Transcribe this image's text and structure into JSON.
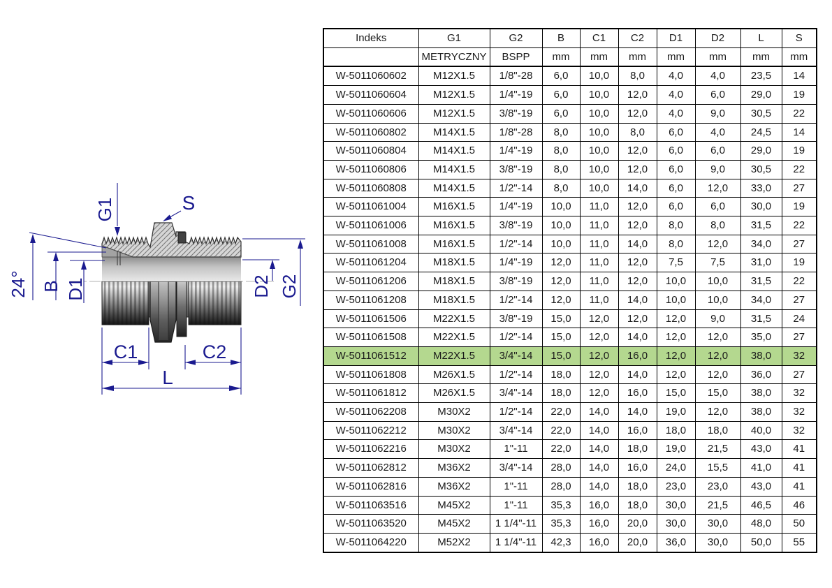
{
  "page": {
    "background": "#ffffff"
  },
  "drawing": {
    "label_color": "#1a1a8f",
    "labels": {
      "g1": "G1",
      "s": "S",
      "angle": "24°",
      "b": "B",
      "d1": "D1",
      "d2": "D2",
      "g2": "G2",
      "c1": "C1",
      "c2": "C2",
      "l": "L"
    }
  },
  "table": {
    "highlight_color": "#b4d88f",
    "highlight_row": 15,
    "columns": [
      "Indeks",
      "G1",
      "G2",
      "B",
      "C1",
      "C2",
      "D1",
      "D2",
      "L",
      "S"
    ],
    "units": [
      "",
      "METRYCZNY",
      "BSPP",
      "mm",
      "mm",
      "mm",
      "mm",
      "mm",
      "mm",
      "mm"
    ],
    "rows": [
      [
        "W-5011060602",
        "M12X1.5",
        "1/8\"-28",
        "6,0",
        "10,0",
        "8,0",
        "4,0",
        "4,0",
        "23,5",
        "14"
      ],
      [
        "W-5011060604",
        "M12X1.5",
        "1/4\"-19",
        "6,0",
        "10,0",
        "12,0",
        "4,0",
        "6,0",
        "29,0",
        "19"
      ],
      [
        "W-5011060606",
        "M12X1.5",
        "3/8\"-19",
        "6,0",
        "10,0",
        "12,0",
        "4,0",
        "9,0",
        "30,5",
        "22"
      ],
      [
        "W-5011060802",
        "M14X1.5",
        "1/8\"-28",
        "8,0",
        "10,0",
        "8,0",
        "6,0",
        "4,0",
        "24,5",
        "14"
      ],
      [
        "W-5011060804",
        "M14X1.5",
        "1/4\"-19",
        "8,0",
        "10,0",
        "12,0",
        "6,0",
        "6,0",
        "29,0",
        "19"
      ],
      [
        "W-5011060806",
        "M14X1.5",
        "3/8\"-19",
        "8,0",
        "10,0",
        "12,0",
        "6,0",
        "9,0",
        "30,5",
        "22"
      ],
      [
        "W-5011060808",
        "M14X1.5",
        "1/2\"-14",
        "8,0",
        "10,0",
        "14,0",
        "6,0",
        "12,0",
        "33,0",
        "27"
      ],
      [
        "W-5011061004",
        "M16X1.5",
        "1/4\"-19",
        "10,0",
        "11,0",
        "12,0",
        "6,0",
        "6,0",
        "30,0",
        "19"
      ],
      [
        "W-5011061006",
        "M16X1.5",
        "3/8\"-19",
        "10,0",
        "11,0",
        "12,0",
        "8,0",
        "8,0",
        "31,5",
        "22"
      ],
      [
        "W-5011061008",
        "M16X1.5",
        "1/2\"-14",
        "10,0",
        "11,0",
        "14,0",
        "8,0",
        "12,0",
        "34,0",
        "27"
      ],
      [
        "W-5011061204",
        "M18X1.5",
        "1/4\"-19",
        "12,0",
        "11,0",
        "12,0",
        "7,5",
        "7,5",
        "31,0",
        "19"
      ],
      [
        "W-5011061206",
        "M18X1.5",
        "3/8\"-19",
        "12,0",
        "11,0",
        "12,0",
        "10,0",
        "10,0",
        "31,5",
        "22"
      ],
      [
        "W-5011061208",
        "M18X1.5",
        "1/2\"-14",
        "12,0",
        "11,0",
        "14,0",
        "10,0",
        "10,0",
        "34,0",
        "27"
      ],
      [
        "W-5011061506",
        "M22X1.5",
        "3/8\"-19",
        "15,0",
        "12,0",
        "12,0",
        "12,0",
        "9,0",
        "31,5",
        "24"
      ],
      [
        "W-5011061508",
        "M22X1.5",
        "1/2\"-14",
        "15,0",
        "12,0",
        "14,0",
        "12,0",
        "12,0",
        "35,0",
        "27"
      ],
      [
        "W-5011061512",
        "M22X1.5",
        "3/4\"-14",
        "15,0",
        "12,0",
        "16,0",
        "12,0",
        "12,0",
        "38,0",
        "32"
      ],
      [
        "W-5011061808",
        "M26X1.5",
        "1/2\"-14",
        "18,0",
        "12,0",
        "14,0",
        "12,0",
        "12,0",
        "36,0",
        "27"
      ],
      [
        "W-5011061812",
        "M26X1.5",
        "3/4\"-14",
        "18,0",
        "12,0",
        "16,0",
        "15,0",
        "15,0",
        "38,0",
        "32"
      ],
      [
        "W-5011062208",
        "M30X2",
        "1/2\"-14",
        "22,0",
        "14,0",
        "14,0",
        "19,0",
        "12,0",
        "38,0",
        "32"
      ],
      [
        "W-5011062212",
        "M30X2",
        "3/4\"-14",
        "22,0",
        "14,0",
        "16,0",
        "18,0",
        "18,0",
        "40,0",
        "32"
      ],
      [
        "W-5011062216",
        "M30X2",
        "1\"-11",
        "22,0",
        "14,0",
        "18,0",
        "19,0",
        "21,5",
        "43,0",
        "41"
      ],
      [
        "W-5011062812",
        "M36X2",
        "3/4\"-14",
        "28,0",
        "14,0",
        "16,0",
        "24,0",
        "15,5",
        "41,0",
        "41"
      ],
      [
        "W-5011062816",
        "M36X2",
        "1\"-11",
        "28,0",
        "14,0",
        "18,0",
        "23,0",
        "23,0",
        "43,0",
        "41"
      ],
      [
        "W-5011063516",
        "M45X2",
        "1\"-11",
        "35,3",
        "16,0",
        "18,0",
        "30,0",
        "21,5",
        "46,5",
        "46"
      ],
      [
        "W-5011063520",
        "M45X2",
        "1 1/4\"-11",
        "35,3",
        "16,0",
        "20,0",
        "30,0",
        "30,0",
        "48,0",
        "50"
      ],
      [
        "W-5011064220",
        "M52X2",
        "1 1/4\"-11",
        "42,3",
        "16,0",
        "20,0",
        "36,0",
        "30,0",
        "50,0",
        "55"
      ]
    ]
  }
}
